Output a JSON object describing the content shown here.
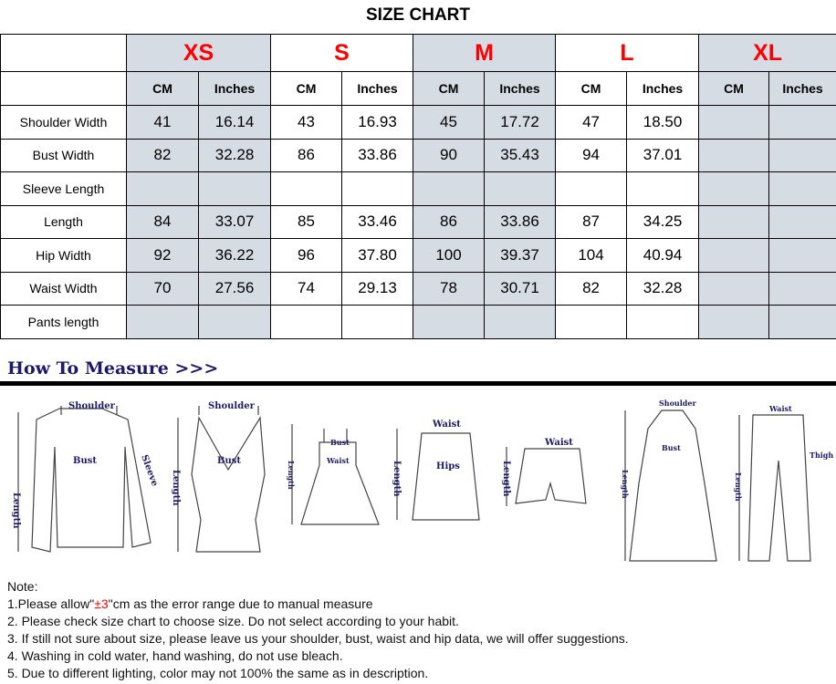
{
  "title": "SIZE CHART",
  "sizes": [
    "XS",
    "S",
    "M",
    "L",
    "XL"
  ],
  "units": {
    "cm": "CM",
    "inches": "Inches"
  },
  "rows": [
    {
      "label": "Shoulder Width",
      "values": [
        "41",
        "16.14",
        "43",
        "16.93",
        "45",
        "17.72",
        "47",
        "18.50",
        "",
        ""
      ]
    },
    {
      "label": "Bust Width",
      "values": [
        "82",
        "32.28",
        "86",
        "33.86",
        "90",
        "35.43",
        "94",
        "37.01",
        "",
        ""
      ]
    },
    {
      "label": "Sleeve Length",
      "values": [
        "",
        "",
        "",
        "",
        "",
        "",
        "",
        "",
        "",
        ""
      ]
    },
    {
      "label": "Length",
      "values": [
        "84",
        "33.07",
        "85",
        "33.46",
        "86",
        "33.86",
        "87",
        "34.25",
        "",
        ""
      ]
    },
    {
      "label": "Hip Width",
      "values": [
        "92",
        "36.22",
        "96",
        "37.80",
        "100",
        "39.37",
        "104",
        "40.94",
        "",
        ""
      ]
    },
    {
      "label": "Waist Width",
      "values": [
        "70",
        "27.56",
        "74",
        "29.13",
        "78",
        "30.71",
        "82",
        "32.28",
        "",
        ""
      ]
    },
    {
      "label": "Pants length",
      "values": [
        "",
        "",
        "",
        "",
        "",
        "",
        "",
        "",
        "",
        ""
      ]
    }
  ],
  "measure": {
    "heading": "How To Measure >>>",
    "labels": {
      "shoulder": "Shoulder",
      "bust": "Bust",
      "sleeve": "Sleeve",
      "length": "Length",
      "waist": "Waist",
      "hips": "Hips",
      "thigh": "Thigh"
    }
  },
  "notes": {
    "heading": "Note:",
    "n1_pre": "1.Please allow\"",
    "n1_red": "±3",
    "n1_post": "\"cm as the error range due to manual measure",
    "n2": "2. Please check size chart to choose size. Do not select according to your habit.",
    "n3": "3. If still not sure about size, please leave us your shoulder, bust, waist and hip data, we will offer suggestions.",
    "n4": "4. Washing in cold water, hand washing, do not use bleach.",
    "n5": "5. Due to different lighting, color may not 100% the same as in description."
  },
  "colors": {
    "size_label": "#ff0000",
    "shaded": "#d6dce4",
    "measure_heading": "#1a1a66"
  }
}
